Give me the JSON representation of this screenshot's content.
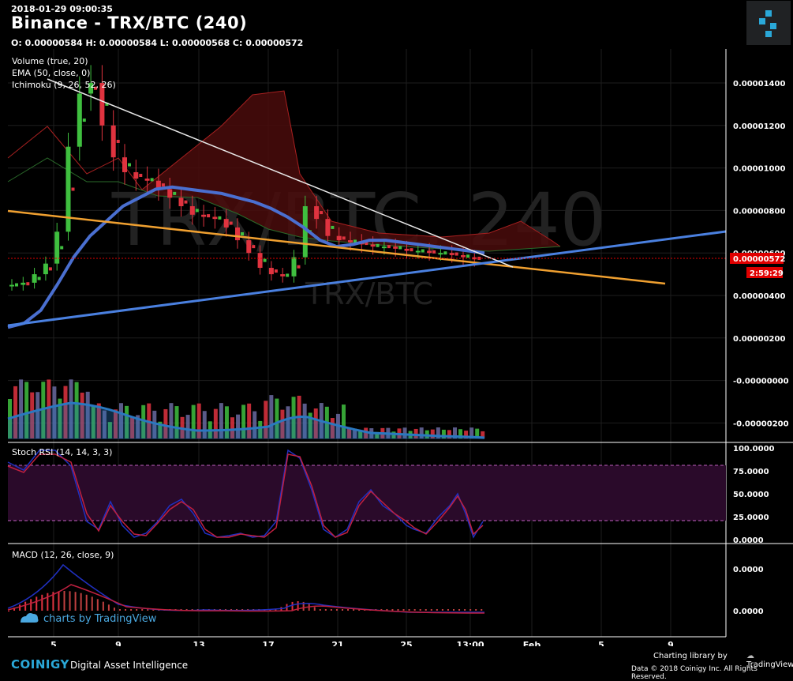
{
  "header": {
    "timestamp": "2018-01-29 09:00:35",
    "title": "Binance - TRX/BTC (240)",
    "ohlc": "O: 0.00000584 H: 0.00000584 L: 0.00000568 C: 0.00000572"
  },
  "indicators": {
    "volume": "Volume (true, 20)",
    "ema": "EMA (50, close, 0)",
    "ichimoku": "Ichimoku (9, 26, 52, 26)",
    "stoch": "Stoch RSI (14, 14, 3, 3)",
    "macd": "MACD (12, 26, close, 9)"
  },
  "watermark": {
    "big": "TRX/BTC, 240",
    "small": "TRX/BTC",
    "tv": "charts by TradingView"
  },
  "price_axis": {
    "labels": [
      "0.00001400",
      "0.00001200",
      "0.00001000",
      "0.00000800",
      "0.00000600",
      "0.00000400",
      "0.00000200",
      "-0.00000000",
      "-0.00000200"
    ],
    "current": "0.00000572",
    "countdown": "2:59:29"
  },
  "stoch_axis": [
    "100.0000",
    "75.0000",
    "50.0000",
    "25.0000",
    "0.0000"
  ],
  "macd_axis": [
    "0.0000",
    "0.0000"
  ],
  "date_axis": [
    "5",
    "9",
    "13",
    "17",
    "21",
    "25",
    "13:00",
    "Feb",
    "5",
    "9"
  ],
  "footer": {
    "brand": "COINIGY",
    "tagline": "Digital Asset Intelligence",
    "charting": "Charting library by",
    "tv": "TradingView",
    "copyright": "Data © 2018  Coinigy Inc. All Rights Reserved."
  },
  "colors": {
    "up": "#3fbf3f",
    "down": "#e0333f",
    "ema": "#4a6fd0",
    "trend_orange": "#f0a030",
    "trend_blue": "#4a80e0",
    "trend_white": "#e8e8e8",
    "cloud_red": "#5a1010",
    "price_tag": "#e00000"
  },
  "chart_data": {
    "type": "candlestick",
    "y_range": [
      -3e-06,
      1.56e-05
    ],
    "current_price": 5.72e-06,
    "close_series": [
      4.5e-06,
      4.6e-06,
      5e-06,
      5.5e-06,
      7e-06,
      1.1e-05,
      1.35e-05,
      1.4e-05,
      1.2e-05,
      1.05e-05,
      9.8e-06,
      9.5e-06,
      9.4e-06,
      9e-06,
      8.6e-06,
      8.2e-06,
      7.8e-06,
      7.7e-06,
      7.6e-06,
      7.2e-06,
      6.6e-06,
      6e-06,
      5.3e-06,
      5e-06,
      4.9e-06,
      5.8e-06,
      8.2e-06,
      7.6e-06,
      6.8e-06,
      6.6e-06,
      6.5e-06,
      6.4e-06,
      6.3e-06,
      6.3e-06,
      6.2e-06,
      6.1e-06,
      6.1e-06,
      6e-06,
      6e-06,
      5.9e-06,
      5.8e-06,
      5.7e-06
    ],
    "ema_series": [
      2.5e-06,
      2.7e-06,
      3.3e-06,
      4.5e-06,
      5.8e-06,
      6.8e-06,
      7.5e-06,
      8.2e-06,
      8.6e-06,
      9e-06,
      9.1e-06,
      9e-06,
      8.9e-06,
      8.8e-06,
      8.6e-06,
      8.4e-06,
      8.1e-06,
      7.7e-06,
      7.2e-06,
      6.6e-06,
      6.3e-06,
      6.4e-06,
      6.6e-06,
      6.6e-06,
      6.5e-06,
      6.4e-06,
      6.3e-06,
      6.2e-06,
      6.1e-06,
      6e-06
    ]
  }
}
